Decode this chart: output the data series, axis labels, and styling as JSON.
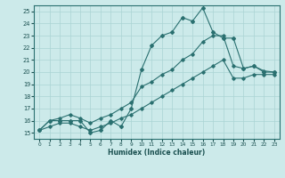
{
  "xlabel": "Humidex (Indice chaleur)",
  "bg_color": "#cceaea",
  "grid_color": "#aad4d4",
  "line_color": "#2a7070",
  "xlim": [
    -0.5,
    23.5
  ],
  "ylim": [
    14.5,
    25.5
  ],
  "xticks": [
    0,
    1,
    2,
    3,
    4,
    5,
    6,
    7,
    8,
    9,
    10,
    11,
    12,
    13,
    14,
    15,
    16,
    17,
    18,
    19,
    20,
    21,
    22,
    23
  ],
  "yticks": [
    15,
    16,
    17,
    18,
    19,
    20,
    21,
    22,
    23,
    24,
    25
  ],
  "y_jagged": [
    15.2,
    16.0,
    16.0,
    16.0,
    16.0,
    15.0,
    15.2,
    16.0,
    15.5,
    17.0,
    20.2,
    22.2,
    23.0,
    23.3,
    24.5,
    24.2,
    25.3,
    23.3,
    22.8,
    22.8,
    20.3,
    20.5,
    20.0,
    20.0
  ],
  "y_upper_diag": [
    15.2,
    16.0,
    16.2,
    16.5,
    16.2,
    15.8,
    16.2,
    16.5,
    17.0,
    17.5,
    18.8,
    19.2,
    19.8,
    20.2,
    21.0,
    21.5,
    22.5,
    23.0,
    23.0,
    20.5,
    20.3,
    20.5,
    20.1,
    20.0
  ],
  "y_lower_diag": [
    15.2,
    15.5,
    15.8,
    15.8,
    15.5,
    15.2,
    15.5,
    15.8,
    16.2,
    16.5,
    17.0,
    17.5,
    18.0,
    18.5,
    19.0,
    19.5,
    20.0,
    20.5,
    21.0,
    19.5,
    19.5,
    19.8,
    19.8,
    19.8
  ]
}
